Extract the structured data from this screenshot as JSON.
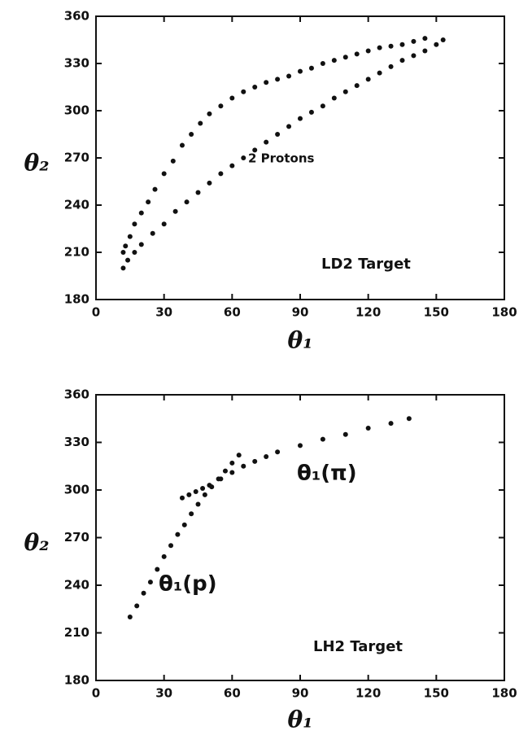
{
  "chart_data": [
    {
      "type": "scatter",
      "xlabel": "θ₁",
      "ylabel": "θ₂",
      "xlim": [
        0,
        180
      ],
      "ylim": [
        180,
        360
      ],
      "xticks": [
        0,
        30,
        60,
        90,
        120,
        150,
        180
      ],
      "yticks": [
        180,
        210,
        240,
        270,
        300,
        330,
        360
      ],
      "annotations": [
        "2 Protons",
        "LD2 Target"
      ],
      "series": [
        {
          "color": "#111111",
          "x": [
            12,
            13,
            15,
            17,
            20,
            23,
            26,
            30,
            34,
            38,
            42,
            46,
            50,
            55,
            60,
            65,
            70,
            75,
            80,
            85,
            90,
            95,
            100,
            105,
            110,
            115,
            120,
            125,
            130,
            135,
            140,
            145
          ],
          "values": [
            210,
            214,
            220,
            228,
            235,
            242,
            250,
            260,
            268,
            278,
            285,
            292,
            298,
            303,
            308,
            312,
            315,
            318,
            320,
            322,
            325,
            327,
            330,
            332,
            334,
            336,
            338,
            340,
            341,
            342,
            344,
            346
          ]
        },
        {
          "color": "#111111",
          "x": [
            12,
            14,
            17,
            20,
            25,
            30,
            35,
            40,
            45,
            50,
            55,
            60,
            65,
            70,
            75,
            80,
            85,
            90,
            95,
            100,
            105,
            110,
            115,
            120,
            125,
            130,
            135,
            140,
            145,
            150,
            153
          ],
          "values": [
            200,
            205,
            210,
            215,
            222,
            228,
            236,
            242,
            248,
            254,
            260,
            265,
            270,
            275,
            280,
            285,
            290,
            295,
            299,
            303,
            308,
            312,
            316,
            320,
            324,
            328,
            332,
            335,
            338,
            342,
            345
          ]
        }
      ]
    },
    {
      "type": "scatter",
      "xlabel": "θ₁",
      "ylabel": "θ₂",
      "xlim": [
        0,
        180
      ],
      "ylim": [
        180,
        360
      ],
      "xticks": [
        0,
        30,
        60,
        90,
        120,
        150,
        180
      ],
      "yticks": [
        180,
        210,
        240,
        270,
        300,
        330,
        360
      ],
      "annotations": [
        "θ₁(π)",
        "θ₁(p)",
        "LH2 Target"
      ],
      "series": [
        {
          "color": "#111111",
          "x": [
            15,
            18,
            21,
            24,
            27,
            30,
            33,
            36,
            39,
            42,
            45,
            48,
            51,
            54,
            57,
            60,
            63
          ],
          "values": [
            220,
            227,
            235,
            242,
            250,
            258,
            265,
            272,
            278,
            285,
            291,
            297,
            302,
            307,
            312,
            317,
            322
          ]
        },
        {
          "color": "#111111",
          "x": [
            38,
            41,
            44,
            47,
            50,
            55,
            60,
            65,
            70,
            75,
            80,
            90,
            100,
            110,
            120,
            130,
            138
          ],
          "values": [
            295,
            297,
            299,
            301,
            303,
            307,
            311,
            315,
            318,
            321,
            324,
            328,
            332,
            335,
            339,
            342,
            345
          ]
        }
      ]
    }
  ]
}
